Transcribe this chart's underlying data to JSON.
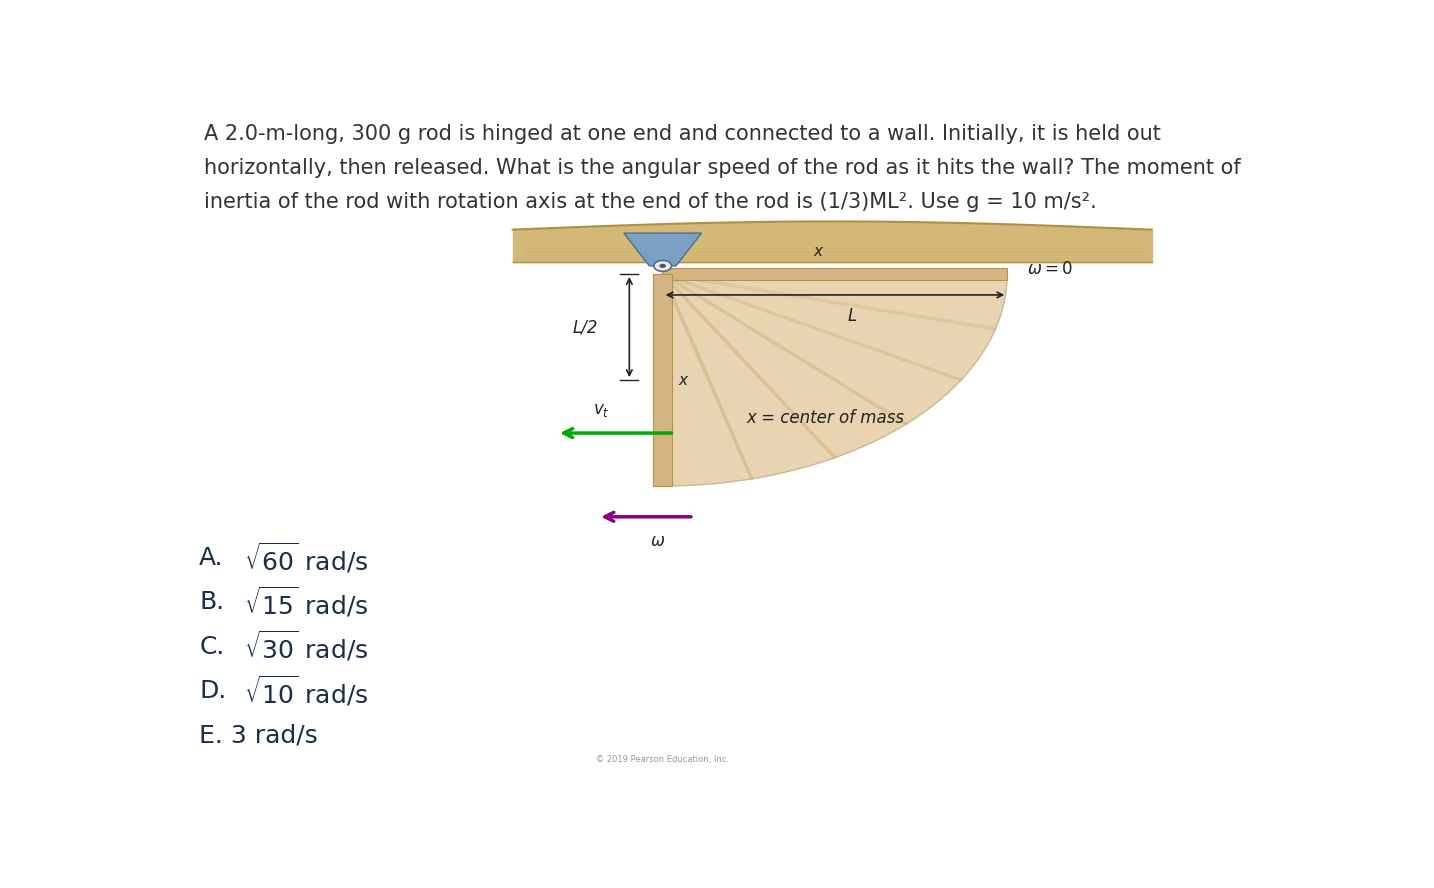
{
  "background_color": "#ffffff",
  "title_lines": [
    "A 2.0-m-long, 300 g rod is hinged at one end and connected to a wall. Initially, it is held out",
    "horizontally, then released. What is the angular speed of the rod as it hits the wall? The moment of",
    "inertia of the rod with rotation axis at the end of the rod is (1/3)ML². Use g = 10 m/s²."
  ],
  "title_fontsize": 15.0,
  "title_color": "#333333",
  "choices": [
    {
      "label": "A.",
      "sqrt_num": "60",
      "unit": " rad/s"
    },
    {
      "label": "B.",
      "sqrt_num": "15",
      "unit": " rad/s"
    },
    {
      "label": "C.",
      "sqrt_num": "30",
      "unit": " rad/s"
    },
    {
      "label": "D.",
      "sqrt_num": "10",
      "unit": " rad/s"
    },
    {
      "label": "E.",
      "plain": "3 rad/s"
    }
  ],
  "choice_color": "#1a2e4a",
  "choice_fontsize": 18,
  "fig_width": 14.34,
  "fig_height": 8.88,
  "rod_color": "#d4b483",
  "rod_edge_color": "#b8904a",
  "ceiling_color": "#d4b878",
  "ceiling_edge_color": "#b09040",
  "hinge_color": "#7aa0c4",
  "hinge_edge_color": "#4a7090",
  "sweep_color": "#e8d4b0",
  "sweep_edge_color": "#c8b898",
  "arrow_green": "#00aa00",
  "arrow_purple": "#880088",
  "label_color": "#222222"
}
